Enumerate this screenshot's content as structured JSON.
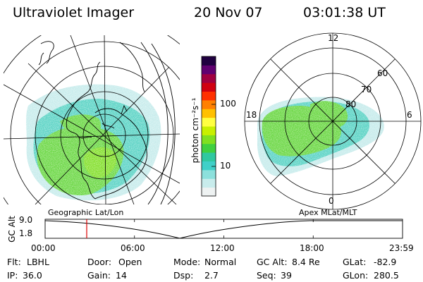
{
  "header": {
    "instrument": "Ultraviolet Imager",
    "date": "20 Nov 07",
    "time": "03:01:38 UT"
  },
  "left_panel": {
    "label": "Geographic Lat/Lon"
  },
  "right_panel": {
    "label": "Apex MLat/MLT",
    "mlt_labels": [
      "12",
      "18",
      "6",
      "0"
    ],
    "mlat_labels": [
      "60",
      "70",
      "80"
    ]
  },
  "colorbar": {
    "unit": "photon cm⁻²s⁻¹",
    "ticks": [
      "100",
      "10"
    ],
    "scale": "log",
    "colors": [
      "#eef2f2",
      "#c8ecec",
      "#8ce0dc",
      "#40d0c8",
      "#30c8a0",
      "#40d040",
      "#80e020",
      "#c8f000",
      "#ffff40",
      "#ffc000",
      "#ff8000",
      "#ff3000",
      "#d00010",
      "#a00040",
      "#600070",
      "#200040"
    ]
  },
  "timeline": {
    "y_axis_label": "GC Alt",
    "y_ticks": [
      "9.0",
      "1.8"
    ],
    "x_ticks": [
      "00:00",
      "06:00",
      "12:00",
      "18:00",
      "23:59"
    ],
    "marker_time": "03:01",
    "marker_color": "#dd0000"
  },
  "info": {
    "rows": [
      [
        {
          "label": "Flt:",
          "value": "LBHL"
        },
        {
          "label": "Door:",
          "value": "Open"
        },
        {
          "label": "Mode:",
          "value": "Normal"
        },
        {
          "label": "GC Alt:",
          "value": "8.4 Re"
        },
        {
          "label": "GLat:",
          "value": "-82.9"
        }
      ],
      [
        {
          "label": "IP:",
          "value": "36.0"
        },
        {
          "label": "Gain:",
          "value": "14"
        },
        {
          "label": "Dsp:",
          "value": "2.7"
        },
        {
          "label": "Seq:",
          "value": "39"
        },
        {
          "label": "GLon:",
          "value": "280.5"
        }
      ]
    ]
  }
}
